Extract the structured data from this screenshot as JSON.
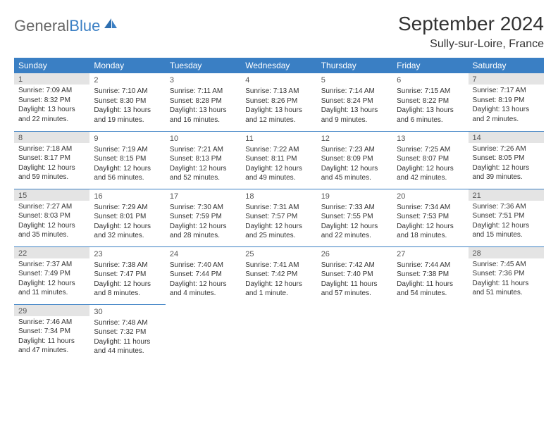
{
  "brand": {
    "part1": "General",
    "part2": "Blue"
  },
  "title": {
    "month": "September 2024",
    "location": "Sully-sur-Loire, France"
  },
  "colors": {
    "header_bg": "#3a7fc4",
    "header_text": "#ffffff",
    "divider": "#3a7fc4",
    "shaded_day": "#e4e4e4",
    "page_bg": "#ffffff",
    "text": "#333333"
  },
  "weekdays": [
    "Sunday",
    "Monday",
    "Tuesday",
    "Wednesday",
    "Thursday",
    "Friday",
    "Saturday"
  ],
  "weeks": [
    [
      {
        "day": "1",
        "shaded": true,
        "sunrise": "Sunrise: 7:09 AM",
        "sunset": "Sunset: 8:32 PM",
        "daylight": "Daylight: 13 hours and 22 minutes."
      },
      {
        "day": "2",
        "shaded": false,
        "sunrise": "Sunrise: 7:10 AM",
        "sunset": "Sunset: 8:30 PM",
        "daylight": "Daylight: 13 hours and 19 minutes."
      },
      {
        "day": "3",
        "shaded": false,
        "sunrise": "Sunrise: 7:11 AM",
        "sunset": "Sunset: 8:28 PM",
        "daylight": "Daylight: 13 hours and 16 minutes."
      },
      {
        "day": "4",
        "shaded": false,
        "sunrise": "Sunrise: 7:13 AM",
        "sunset": "Sunset: 8:26 PM",
        "daylight": "Daylight: 13 hours and 12 minutes."
      },
      {
        "day": "5",
        "shaded": false,
        "sunrise": "Sunrise: 7:14 AM",
        "sunset": "Sunset: 8:24 PM",
        "daylight": "Daylight: 13 hours and 9 minutes."
      },
      {
        "day": "6",
        "shaded": false,
        "sunrise": "Sunrise: 7:15 AM",
        "sunset": "Sunset: 8:22 PM",
        "daylight": "Daylight: 13 hours and 6 minutes."
      },
      {
        "day": "7",
        "shaded": true,
        "sunrise": "Sunrise: 7:17 AM",
        "sunset": "Sunset: 8:19 PM",
        "daylight": "Daylight: 13 hours and 2 minutes."
      }
    ],
    [
      {
        "day": "8",
        "shaded": true,
        "sunrise": "Sunrise: 7:18 AM",
        "sunset": "Sunset: 8:17 PM",
        "daylight": "Daylight: 12 hours and 59 minutes."
      },
      {
        "day": "9",
        "shaded": false,
        "sunrise": "Sunrise: 7:19 AM",
        "sunset": "Sunset: 8:15 PM",
        "daylight": "Daylight: 12 hours and 56 minutes."
      },
      {
        "day": "10",
        "shaded": false,
        "sunrise": "Sunrise: 7:21 AM",
        "sunset": "Sunset: 8:13 PM",
        "daylight": "Daylight: 12 hours and 52 minutes."
      },
      {
        "day": "11",
        "shaded": false,
        "sunrise": "Sunrise: 7:22 AM",
        "sunset": "Sunset: 8:11 PM",
        "daylight": "Daylight: 12 hours and 49 minutes."
      },
      {
        "day": "12",
        "shaded": false,
        "sunrise": "Sunrise: 7:23 AM",
        "sunset": "Sunset: 8:09 PM",
        "daylight": "Daylight: 12 hours and 45 minutes."
      },
      {
        "day": "13",
        "shaded": false,
        "sunrise": "Sunrise: 7:25 AM",
        "sunset": "Sunset: 8:07 PM",
        "daylight": "Daylight: 12 hours and 42 minutes."
      },
      {
        "day": "14",
        "shaded": true,
        "sunrise": "Sunrise: 7:26 AM",
        "sunset": "Sunset: 8:05 PM",
        "daylight": "Daylight: 12 hours and 39 minutes."
      }
    ],
    [
      {
        "day": "15",
        "shaded": true,
        "sunrise": "Sunrise: 7:27 AM",
        "sunset": "Sunset: 8:03 PM",
        "daylight": "Daylight: 12 hours and 35 minutes."
      },
      {
        "day": "16",
        "shaded": false,
        "sunrise": "Sunrise: 7:29 AM",
        "sunset": "Sunset: 8:01 PM",
        "daylight": "Daylight: 12 hours and 32 minutes."
      },
      {
        "day": "17",
        "shaded": false,
        "sunrise": "Sunrise: 7:30 AM",
        "sunset": "Sunset: 7:59 PM",
        "daylight": "Daylight: 12 hours and 28 minutes."
      },
      {
        "day": "18",
        "shaded": false,
        "sunrise": "Sunrise: 7:31 AM",
        "sunset": "Sunset: 7:57 PM",
        "daylight": "Daylight: 12 hours and 25 minutes."
      },
      {
        "day": "19",
        "shaded": false,
        "sunrise": "Sunrise: 7:33 AM",
        "sunset": "Sunset: 7:55 PM",
        "daylight": "Daylight: 12 hours and 22 minutes."
      },
      {
        "day": "20",
        "shaded": false,
        "sunrise": "Sunrise: 7:34 AM",
        "sunset": "Sunset: 7:53 PM",
        "daylight": "Daylight: 12 hours and 18 minutes."
      },
      {
        "day": "21",
        "shaded": true,
        "sunrise": "Sunrise: 7:36 AM",
        "sunset": "Sunset: 7:51 PM",
        "daylight": "Daylight: 12 hours and 15 minutes."
      }
    ],
    [
      {
        "day": "22",
        "shaded": true,
        "sunrise": "Sunrise: 7:37 AM",
        "sunset": "Sunset: 7:49 PM",
        "daylight": "Daylight: 12 hours and 11 minutes."
      },
      {
        "day": "23",
        "shaded": false,
        "sunrise": "Sunrise: 7:38 AM",
        "sunset": "Sunset: 7:47 PM",
        "daylight": "Daylight: 12 hours and 8 minutes."
      },
      {
        "day": "24",
        "shaded": false,
        "sunrise": "Sunrise: 7:40 AM",
        "sunset": "Sunset: 7:44 PM",
        "daylight": "Daylight: 12 hours and 4 minutes."
      },
      {
        "day": "25",
        "shaded": false,
        "sunrise": "Sunrise: 7:41 AM",
        "sunset": "Sunset: 7:42 PM",
        "daylight": "Daylight: 12 hours and 1 minute."
      },
      {
        "day": "26",
        "shaded": false,
        "sunrise": "Sunrise: 7:42 AM",
        "sunset": "Sunset: 7:40 PM",
        "daylight": "Daylight: 11 hours and 57 minutes."
      },
      {
        "day": "27",
        "shaded": false,
        "sunrise": "Sunrise: 7:44 AM",
        "sunset": "Sunset: 7:38 PM",
        "daylight": "Daylight: 11 hours and 54 minutes."
      },
      {
        "day": "28",
        "shaded": true,
        "sunrise": "Sunrise: 7:45 AM",
        "sunset": "Sunset: 7:36 PM",
        "daylight": "Daylight: 11 hours and 51 minutes."
      }
    ],
    [
      {
        "day": "29",
        "shaded": true,
        "sunrise": "Sunrise: 7:46 AM",
        "sunset": "Sunset: 7:34 PM",
        "daylight": "Daylight: 11 hours and 47 minutes."
      },
      {
        "day": "30",
        "shaded": false,
        "sunrise": "Sunrise: 7:48 AM",
        "sunset": "Sunset: 7:32 PM",
        "daylight": "Daylight: 11 hours and 44 minutes."
      },
      null,
      null,
      null,
      null,
      null
    ]
  ]
}
